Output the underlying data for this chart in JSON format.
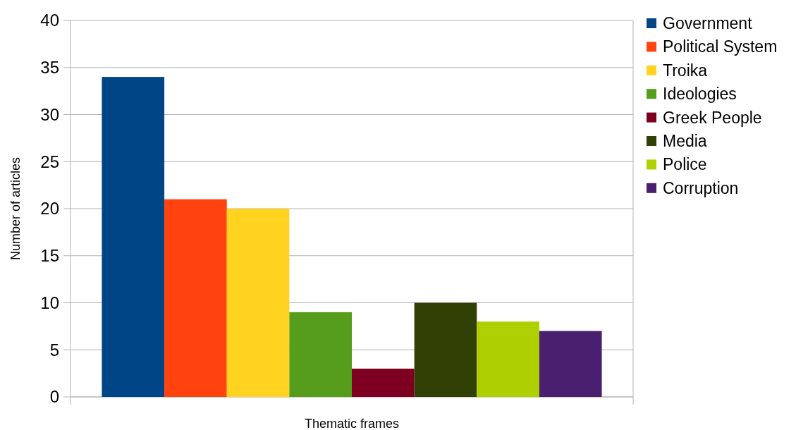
{
  "chart_data": {
    "type": "bar",
    "xlabel": "Thematic frames",
    "ylabel": "Number of articles",
    "categories": [
      null
    ],
    "series": [
      {
        "name": "Government",
        "color": "#004586",
        "values": [
          34
        ]
      },
      {
        "name": "Political System",
        "color": "#ff420e",
        "values": [
          21
        ]
      },
      {
        "name": "Troika",
        "color": "#ffd320",
        "values": [
          20
        ]
      },
      {
        "name": "Ideologies",
        "color": "#579d1c",
        "values": [
          9
        ]
      },
      {
        "name": "Greek People",
        "color": "#7e0021",
        "values": [
          3
        ]
      },
      {
        "name": "Media",
        "color": "#314004",
        "values": [
          10
        ]
      },
      {
        "name": "Police",
        "color": "#aecf00",
        "values": [
          8
        ]
      },
      {
        "name": "Corruption",
        "color": "#4b1f6f",
        "values": [
          7
        ]
      }
    ],
    "ylim": [
      0,
      40
    ],
    "yticks": [
      0,
      5,
      10,
      15,
      20,
      25,
      30,
      35,
      40
    ],
    "grid": "y",
    "legend": "right"
  }
}
